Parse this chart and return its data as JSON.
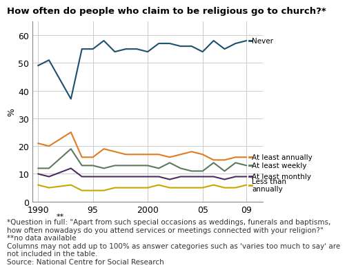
{
  "title": "How often do people who claim to be religious go to church?*",
  "ylabel": "%",
  "footnotes": [
    "*Question in full: \"Apart from such special occasions as weddings, funerals and baptisms,\nhow often nowadays do you attend services or meetings connected with your religion?\"",
    "**no data available",
    "Columns may not add up to 100% as answer categories such as 'varies too much to say' are\nnot included in the table.",
    "Source: National Centre for Social Research"
  ],
  "series": {
    "Never": {
      "color": "#1c4f6b",
      "years": [
        1990,
        1991,
        1993,
        1994,
        1995,
        1996,
        1997,
        1998,
        1999,
        2000,
        2001,
        2002,
        2003,
        2004,
        2005,
        2006,
        2007,
        2008,
        2009
      ],
      "values": [
        49,
        51,
        37,
        55,
        55,
        58,
        54,
        55,
        55,
        54,
        57,
        57,
        56,
        56,
        54,
        58,
        55,
        57,
        58
      ]
    },
    "At least annually": {
      "color": "#e07b22",
      "years": [
        1990,
        1991,
        1993,
        1994,
        1995,
        1996,
        1997,
        1998,
        1999,
        2000,
        2001,
        2002,
        2003,
        2004,
        2005,
        2006,
        2007,
        2008,
        2009
      ],
      "values": [
        21,
        20,
        25,
        16,
        16,
        19,
        18,
        17,
        17,
        17,
        17,
        16,
        17,
        18,
        17,
        15,
        15,
        16,
        16
      ]
    },
    "At least weekly": {
      "color": "#5b7a5b",
      "years": [
        1990,
        1991,
        1993,
        1994,
        1995,
        1996,
        1997,
        1998,
        1999,
        2000,
        2001,
        2002,
        2003,
        2004,
        2005,
        2006,
        2007,
        2008,
        2009
      ],
      "values": [
        12,
        12,
        19,
        13,
        13,
        12,
        13,
        13,
        13,
        13,
        12,
        14,
        12,
        11,
        11,
        14,
        11,
        14,
        13
      ]
    },
    "At least monthly": {
      "color": "#4b2d5e",
      "years": [
        1990,
        1991,
        1993,
        1994,
        1995,
        1996,
        1997,
        1998,
        1999,
        2000,
        2001,
        2002,
        2003,
        2004,
        2005,
        2006,
        2007,
        2008,
        2009
      ],
      "values": [
        10,
        9,
        12,
        9,
        9,
        9,
        9,
        9,
        9,
        9,
        9,
        8,
        9,
        9,
        9,
        9,
        8,
        9,
        9
      ]
    },
    "Less than\nannually": {
      "color": "#c8a800",
      "years": [
        1990,
        1991,
        1993,
        1994,
        1995,
        1996,
        1997,
        1998,
        1999,
        2000,
        2001,
        2002,
        2003,
        2004,
        2005,
        2006,
        2007,
        2008,
        2009
      ],
      "values": [
        6,
        5,
        6,
        4,
        4,
        4,
        5,
        5,
        5,
        5,
        6,
        5,
        5,
        5,
        5,
        6,
        5,
        5,
        6
      ]
    }
  },
  "xlim": [
    1989.5,
    2010.5
  ],
  "ylim": [
    0,
    65
  ],
  "xticks": [
    1990,
    1995,
    2000,
    2005,
    2009
  ],
  "xticklabels": [
    "1990",
    "95",
    "2000",
    "05",
    "09"
  ],
  "yticks": [
    0,
    10,
    20,
    30,
    40,
    50,
    60
  ],
  "bg_color": "#ffffff",
  "grid_color": "#cccccc",
  "label_never": "Never",
  "label_order": [
    "Never",
    "At least annually",
    "At least weekly",
    "At least monthly",
    "Less than\nannually"
  ],
  "no_data_x": 1992,
  "no_data_label": "**"
}
